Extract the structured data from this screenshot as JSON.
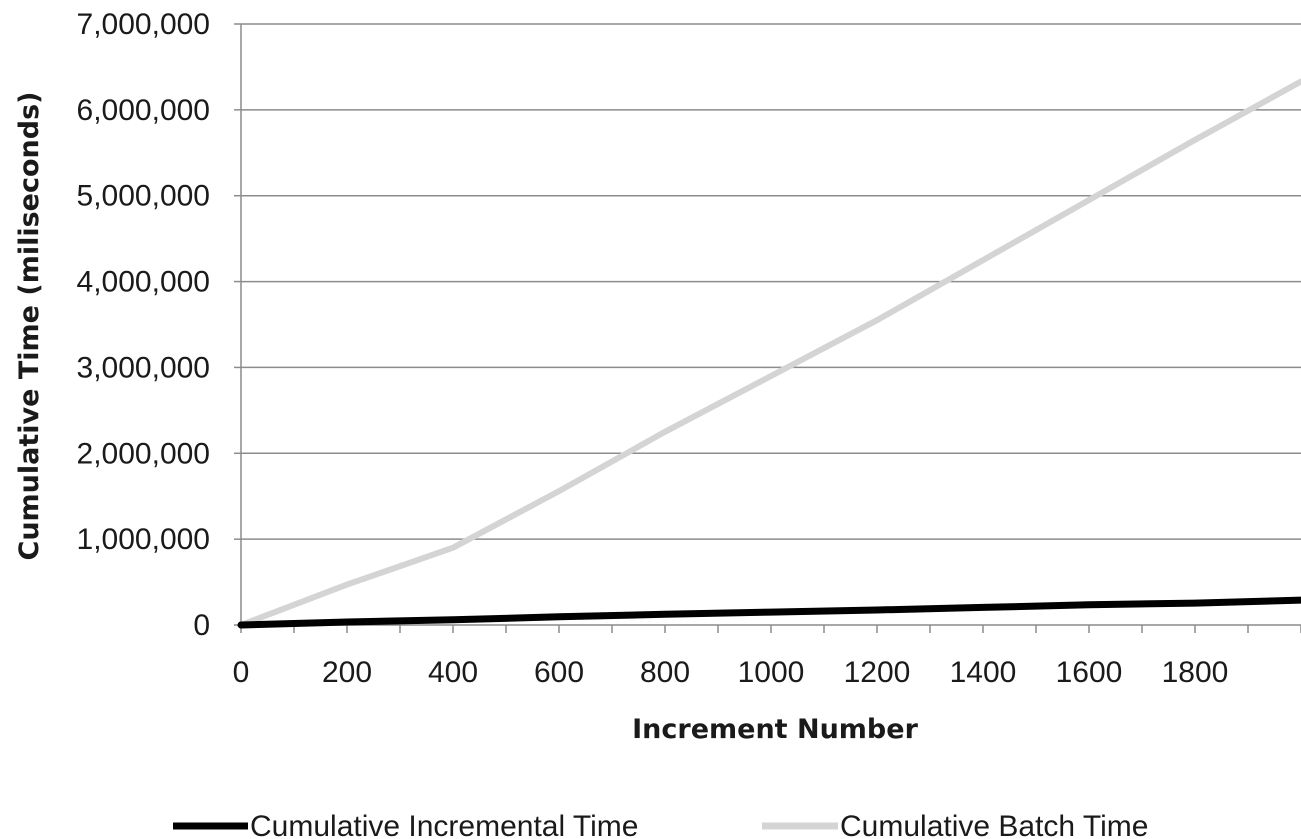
{
  "chart_data": {
    "type": "line",
    "xlabel": "Increment Number",
    "ylabel": "Cumulative Time (miliseconds)",
    "xlim": [
      0,
      2000
    ],
    "ylim": [
      0,
      7000000
    ],
    "x_ticks": [
      0,
      200,
      400,
      600,
      800,
      1000,
      1200,
      1400,
      1600,
      1800
    ],
    "x_tick_labels": [
      "0",
      "200",
      "400",
      "600",
      "800",
      "1000",
      "1200",
      "1400",
      "1600",
      "1800"
    ],
    "y_ticks": [
      0,
      1000000,
      2000000,
      3000000,
      4000000,
      5000000,
      6000000,
      7000000
    ],
    "y_tick_labels": [
      "0",
      "1,000,000",
      "2,000,000",
      "3,000,000",
      "4,000,000",
      "5,000,000",
      "6,000,000",
      "7,000,000"
    ],
    "grid": "horizontal",
    "legend_position": "bottom",
    "series": [
      {
        "name": "Cumulative Incremental Time",
        "color": "#000000",
        "x": [
          0,
          200,
          400,
          600,
          800,
          1000,
          1200,
          1400,
          1600,
          1800,
          2000
        ],
        "y": [
          0,
          35000,
          60000,
          95000,
          125000,
          150000,
          175000,
          205000,
          235000,
          255000,
          290000
        ]
      },
      {
        "name": "Cumulative Batch Time",
        "color": "#d4d4d4",
        "x": [
          0,
          200,
          400,
          600,
          800,
          1000,
          1200,
          1400,
          1600,
          1800,
          2000
        ],
        "y": [
          0,
          470000,
          900000,
          1560000,
          2250000,
          2900000,
          3550000,
          4250000,
          4950000,
          5650000,
          6330000
        ]
      }
    ]
  }
}
